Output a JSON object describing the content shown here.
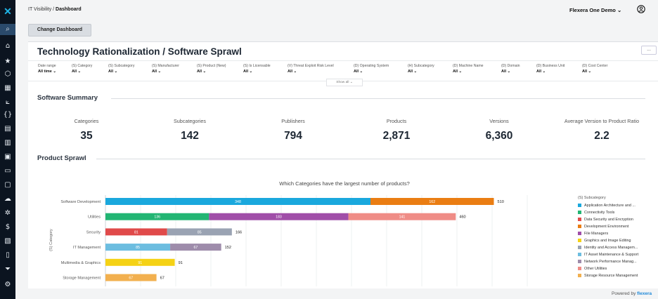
{
  "nav": {
    "logo_glyph": "✕",
    "icons": [
      {
        "name": "search-icon",
        "glyph": "⌕"
      },
      {
        "name": "home-icon",
        "glyph": "⌂"
      },
      {
        "name": "star-icon",
        "glyph": "★"
      },
      {
        "name": "cube-icon",
        "glyph": "⬡"
      },
      {
        "name": "grid-icon",
        "glyph": "▦"
      },
      {
        "name": "analytics-icon",
        "glyph": "⟀"
      },
      {
        "name": "braces-icon",
        "glyph": "{}"
      },
      {
        "name": "report-icon",
        "glyph": "▤"
      },
      {
        "name": "clipboard-icon",
        "glyph": "▥"
      },
      {
        "name": "table-icon",
        "glyph": "▣"
      },
      {
        "name": "window-icon",
        "glyph": "▭"
      },
      {
        "name": "monitor-icon",
        "glyph": "▢"
      },
      {
        "name": "cloud-icon",
        "glyph": "☁"
      },
      {
        "name": "gear-check-icon",
        "glyph": "✲"
      },
      {
        "name": "dollar-icon",
        "glyph": "$"
      },
      {
        "name": "book-icon",
        "glyph": "▧"
      },
      {
        "name": "document-icon",
        "glyph": "▯"
      },
      {
        "name": "funnel-icon",
        "glyph": "⏷"
      },
      {
        "name": "settings-icon",
        "glyph": "⚙"
      }
    ]
  },
  "header": {
    "breadcrumb_parent": "IT Visibility /",
    "breadcrumb_current": "Dashboard",
    "user_menu": "Flexera One Demo",
    "user_menu_chevron": "⌄",
    "user_icon": "user-icon"
  },
  "toolbar": {
    "change_dashboard": "Change Dashboard"
  },
  "dashboard": {
    "title": "Technology Rationalization / Software Sprawl",
    "more_label": "...",
    "show_all": "Show all ⌄",
    "filters": [
      {
        "label": "Date range",
        "value": "All time ⌄"
      },
      {
        "label": "(S) Category",
        "value": "All ⌄"
      },
      {
        "label": "(S) Subcategory",
        "value": "All ⌄"
      },
      {
        "label": "(S) Manufacturer",
        "value": "All ⌄"
      },
      {
        "label": "(S) Product (New)",
        "value": "All ⌄"
      },
      {
        "label": "(S) Is Licensable",
        "value": "All ⌄"
      },
      {
        "label": "(V) Threat Exploit Risk Level",
        "value": "All ⌄"
      },
      {
        "label": "(D) Operating System",
        "value": "All ⌄"
      },
      {
        "label": "(H) Subcategory",
        "value": "All ⌄"
      },
      {
        "label": "(D) Machine Name",
        "value": "All ⌄"
      },
      {
        "label": "(D) Domain",
        "value": "All ⌄"
      },
      {
        "label": "(D) Business Unit",
        "value": "All ⌄"
      },
      {
        "label": "(D) Cost Center",
        "value": "All ⌄"
      }
    ]
  },
  "summary": {
    "title": "Software Summary",
    "stats": [
      {
        "label": "Categories",
        "value": "35"
      },
      {
        "label": "Subcategories",
        "value": "142"
      },
      {
        "label": "Publishers",
        "value": "794"
      },
      {
        "label": "Products",
        "value": "2,871"
      },
      {
        "label": "Versions",
        "value": "6,360"
      },
      {
        "label": "Average Version to Product Ratio",
        "value": "2.2"
      }
    ]
  },
  "sprawl": {
    "title": "Product Sprawl"
  },
  "chart_data": {
    "type": "bar",
    "orientation": "horizontal",
    "stacked": true,
    "title": "Which Categories have the largest number of products?",
    "ylabel": "(S) Category",
    "xlabel": "",
    "xlim": [
      0,
      600
    ],
    "categories": [
      "Software Development",
      "Utilities",
      "Security",
      "IT Management",
      "Multimedia & Graphics",
      "Storage Management"
    ],
    "totals": [
      510,
      460,
      166,
      152,
      91,
      67
    ],
    "legend_title": "(S) Subcategory",
    "series": [
      {
        "name": "Application Architecture and ...",
        "color": "#1aa8dd",
        "values": [
          348,
          0,
          0,
          0,
          0,
          0
        ]
      },
      {
        "name": "Connectivity Tools",
        "color": "#22b573",
        "values": [
          0,
          136,
          0,
          0,
          0,
          0
        ]
      },
      {
        "name": "Data Security and Encryption",
        "color": "#e04a4a",
        "values": [
          0,
          0,
          81,
          0,
          0,
          0
        ]
      },
      {
        "name": "Development Environment",
        "color": "#ea7d13",
        "values": [
          162,
          0,
          0,
          0,
          0,
          0
        ]
      },
      {
        "name": "File Managers",
        "color": "#a04ea8",
        "values": [
          0,
          183,
          0,
          0,
          0,
          0
        ]
      },
      {
        "name": "Graphics and Image Editing",
        "color": "#f5d215",
        "values": [
          0,
          0,
          0,
          0,
          91,
          0
        ]
      },
      {
        "name": "Identity and Access Managem...",
        "color": "#9aa3b3",
        "values": [
          0,
          0,
          85,
          0,
          0,
          0
        ]
      },
      {
        "name": "IT Asset Maintenance & Support",
        "color": "#6cbde0",
        "values": [
          0,
          0,
          0,
          85,
          0,
          0
        ]
      },
      {
        "name": "Network Performance Manag...",
        "color": "#9e8cab",
        "values": [
          0,
          0,
          0,
          67,
          0,
          0
        ]
      },
      {
        "name": "Other Utilities",
        "color": "#ef8c86",
        "values": [
          0,
          141,
          0,
          0,
          0,
          0
        ]
      },
      {
        "name": "Storage Resource Management",
        "color": "#f2b04f",
        "values": [
          0,
          0,
          0,
          0,
          0,
          67
        ]
      }
    ]
  },
  "footer": {
    "powered_prefix": "Powered by",
    "powered_brand": "flexera"
  }
}
